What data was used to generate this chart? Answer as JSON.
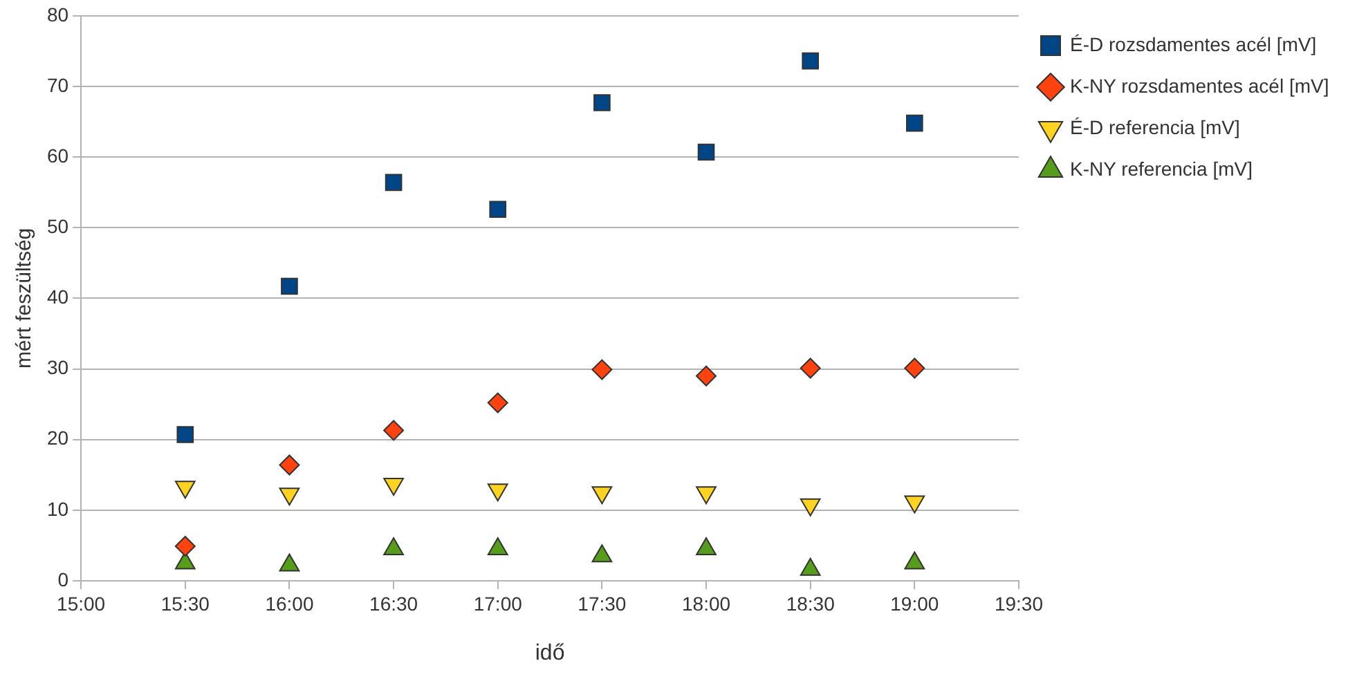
{
  "chart_data": {
    "type": "scatter",
    "xlabel": "idő",
    "ylabel": "mért feszültség",
    "x": [
      15.5,
      16,
      16.5,
      17,
      17.5,
      18,
      18.5,
      19
    ],
    "series": [
      {
        "name": "É-D rozsdamentes acél [mV]",
        "color": "#004586",
        "marker": "square",
        "values": [
          20.7,
          41.7,
          56.4,
          52.6,
          67.7,
          60.7,
          73.6,
          64.8
        ]
      },
      {
        "name": "K-NY rozsdamentes acél [mV]",
        "color": "#ff420e",
        "marker": "diamond",
        "values": [
          4.9,
          16.4,
          21.3,
          25.2,
          29.9,
          29.0,
          30.1,
          30.1
        ]
      },
      {
        "name": "É-D referencia [mV]",
        "color": "#ffd320",
        "marker": "triangle-down",
        "values": [
          13.3,
          12.3,
          13.7,
          12.9,
          12.5,
          12.5,
          10.8,
          11.2
        ]
      },
      {
        "name": "K-NY referencia [mV]",
        "color": "#579d1c",
        "marker": "triangle",
        "values": [
          2.5,
          2.2,
          4.5,
          4.5,
          3.5,
          4.5,
          1.6,
          2.5
        ]
      }
    ],
    "xlim": [
      15,
      19.5
    ],
    "xticks": [
      {
        "value": 15,
        "label": "15:00"
      },
      {
        "value": 15.5,
        "label": "15:30"
      },
      {
        "value": 16,
        "label": "16:00"
      },
      {
        "value": 16.5,
        "label": "16:30"
      },
      {
        "value": 17,
        "label": "17:00"
      },
      {
        "value": 17.5,
        "label": "17:30"
      },
      {
        "value": 18,
        "label": "18:00"
      },
      {
        "value": 18.5,
        "label": "18:30"
      },
      {
        "value": 19,
        "label": "19:00"
      },
      {
        "value": 19.5,
        "label": "19:30"
      }
    ],
    "ylim": [
      0,
      80
    ],
    "yticks": [
      0,
      10,
      20,
      30,
      40,
      50,
      60,
      70,
      80
    ],
    "grid": "y",
    "legend": "top right"
  }
}
